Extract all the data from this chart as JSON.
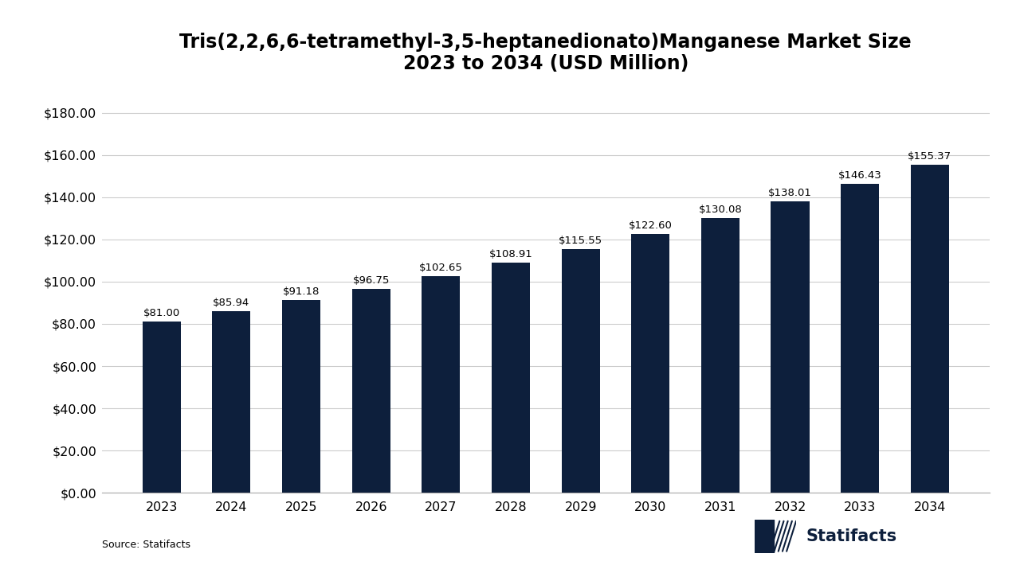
{
  "title": "Tris(2,2,6,6-tetramethyl-3,5-heptanedionato)Manganese Market Size\n2023 to 2034 (USD Million)",
  "years": [
    2023,
    2024,
    2025,
    2026,
    2027,
    2028,
    2029,
    2030,
    2031,
    2032,
    2033,
    2034
  ],
  "values": [
    81.0,
    85.94,
    91.18,
    96.75,
    102.65,
    108.91,
    115.55,
    122.6,
    130.08,
    138.01,
    146.43,
    155.37
  ],
  "labels": [
    "$81.00",
    "$85.94",
    "$91.18",
    "$96.75",
    "$102.65",
    "$108.91",
    "$115.55",
    "$122.60",
    "$130.08",
    "$138.01",
    "$146.43",
    "$155.37"
  ],
  "bar_color": "#0d1f3c",
  "background_color": "#ffffff",
  "title_fontsize": 17,
  "tick_fontsize": 11.5,
  "label_fontsize": 9.5,
  "ylim": [
    0,
    190
  ],
  "yticks": [
    0,
    20,
    40,
    60,
    80,
    100,
    120,
    140,
    160,
    180
  ],
  "ytick_labels": [
    "$0.00",
    "$20.00",
    "$40.00",
    "$60.00",
    "$80.00",
    "$100.00",
    "$120.00",
    "$140.00",
    "$160.00",
    "$180.00"
  ],
  "source_text": "Source: Statifacts",
  "grid_color": "#cccccc",
  "logo_text": "Statifacts"
}
